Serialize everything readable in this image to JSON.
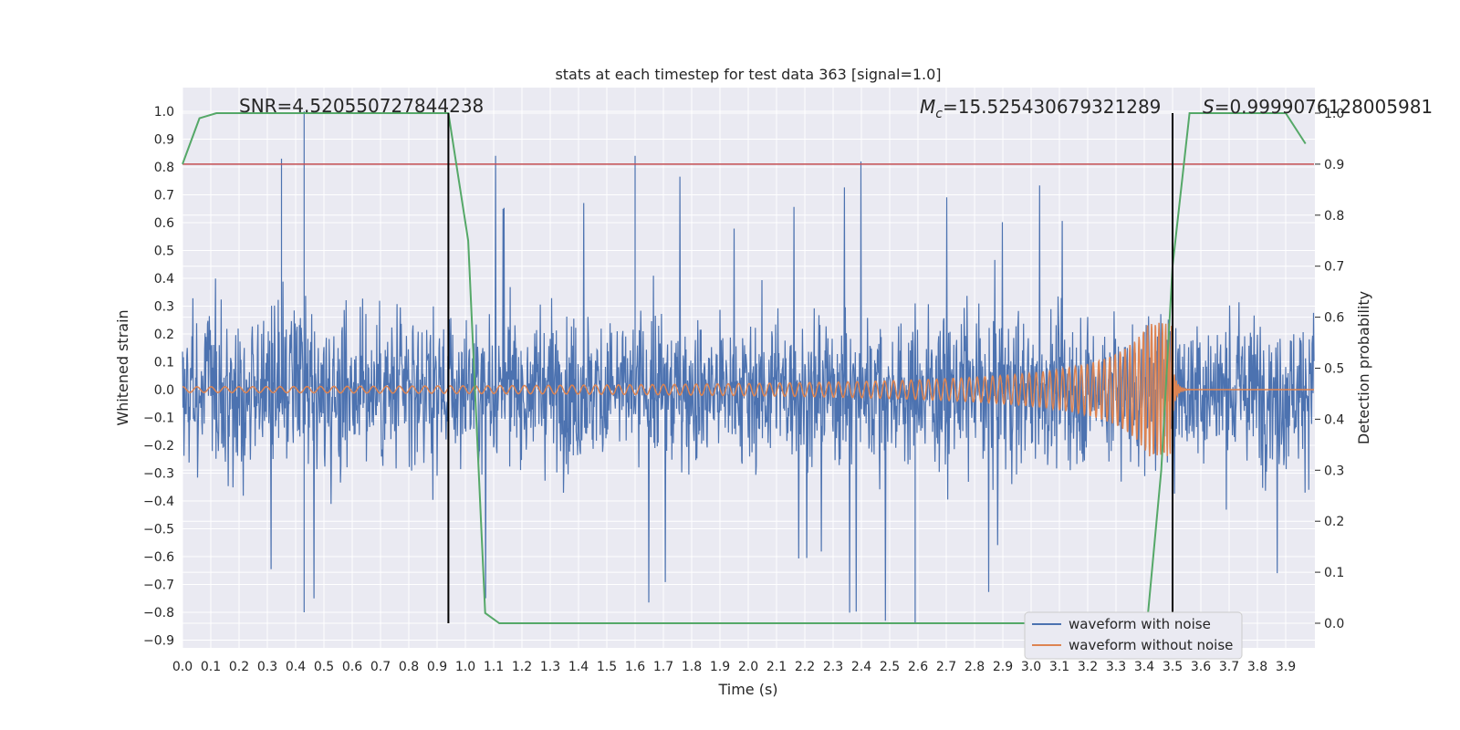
{
  "chart_data": {
    "type": "line",
    "title": "stats at each timestep for test data 363 [signal=1.0]",
    "xlabel": "Time (s)",
    "ylabel": "Whitened strain",
    "y2label": "Detection probability",
    "xlim": [
      0.0,
      4.0
    ],
    "ylim": [
      -0.9,
      1.0
    ],
    "y2lim": [
      0.0,
      1.0
    ],
    "x_ticks": [
      "0.0",
      "0.1",
      "0.2",
      "0.3",
      "0.4",
      "0.5",
      "0.6",
      "0.7",
      "0.8",
      "0.9",
      "1.0",
      "1.1",
      "1.2",
      "1.3",
      "1.4",
      "1.5",
      "1.6",
      "1.7",
      "1.8",
      "1.9",
      "2.0",
      "2.1",
      "2.2",
      "2.3",
      "2.4",
      "2.5",
      "2.6",
      "2.7",
      "2.8",
      "2.9",
      "3.0",
      "3.1",
      "3.2",
      "3.3",
      "3.4",
      "3.5",
      "3.6",
      "3.7",
      "3.8",
      "3.9"
    ],
    "y_ticks": [
      "1.0",
      "0.9",
      "0.8",
      "0.7",
      "0.6",
      "0.5",
      "0.4",
      "0.3",
      "0.2",
      "0.1",
      "0.0",
      "−0.1",
      "−0.2",
      "−0.3",
      "−0.4",
      "−0.5",
      "−0.6",
      "−0.7",
      "−0.8",
      "−0.9"
    ],
    "y2_ticks": [
      "1.0",
      "0.9",
      "0.8",
      "0.7",
      "0.6",
      "0.5",
      "0.4",
      "0.3",
      "0.2",
      "0.1",
      "0.0"
    ],
    "grid": true,
    "legend_position": "bottom-right",
    "annotations": {
      "snr": "SNR=4.520550727844238",
      "mc_symbol": "M",
      "mc_sub": "c",
      "mc_value": "=15.525430679321289",
      "s_symbol": "S",
      "s_value": "=0.9999076128005981"
    },
    "vertical_lines_x": [
      0.94,
      3.5
    ],
    "threshold_y2": 0.9,
    "series": [
      {
        "name": "waveform with noise",
        "color": "#4c72b0",
        "envelope": {
          "amplitude_typical": 0.35,
          "amplitude_max": 1.0,
          "amplitude_min": -0.84
        }
      },
      {
        "name": "waveform without noise",
        "color": "#dd8452",
        "chirp": {
          "start_amplitude": 0.01,
          "peak_amplitude": 0.24,
          "merger_time": 3.5
        }
      },
      {
        "color": "#55a868",
        "axis": "y2",
        "x": [
          0.0,
          0.06,
          0.12,
          0.2,
          0.94,
          1.01,
          1.07,
          1.12,
          1.5,
          3.41,
          3.46,
          3.5,
          3.56,
          3.9,
          3.97
        ],
        "y": [
          0.9,
          0.99,
          1.0,
          1.0,
          1.0,
          0.75,
          0.02,
          0.0,
          0.0,
          0.0,
          0.3,
          0.7,
          1.0,
          1.0,
          0.94
        ]
      },
      {
        "color": "#c44e52",
        "axis": "y2",
        "x": [
          0.0,
          4.0
        ],
        "y": [
          0.9,
          0.9
        ]
      }
    ]
  }
}
